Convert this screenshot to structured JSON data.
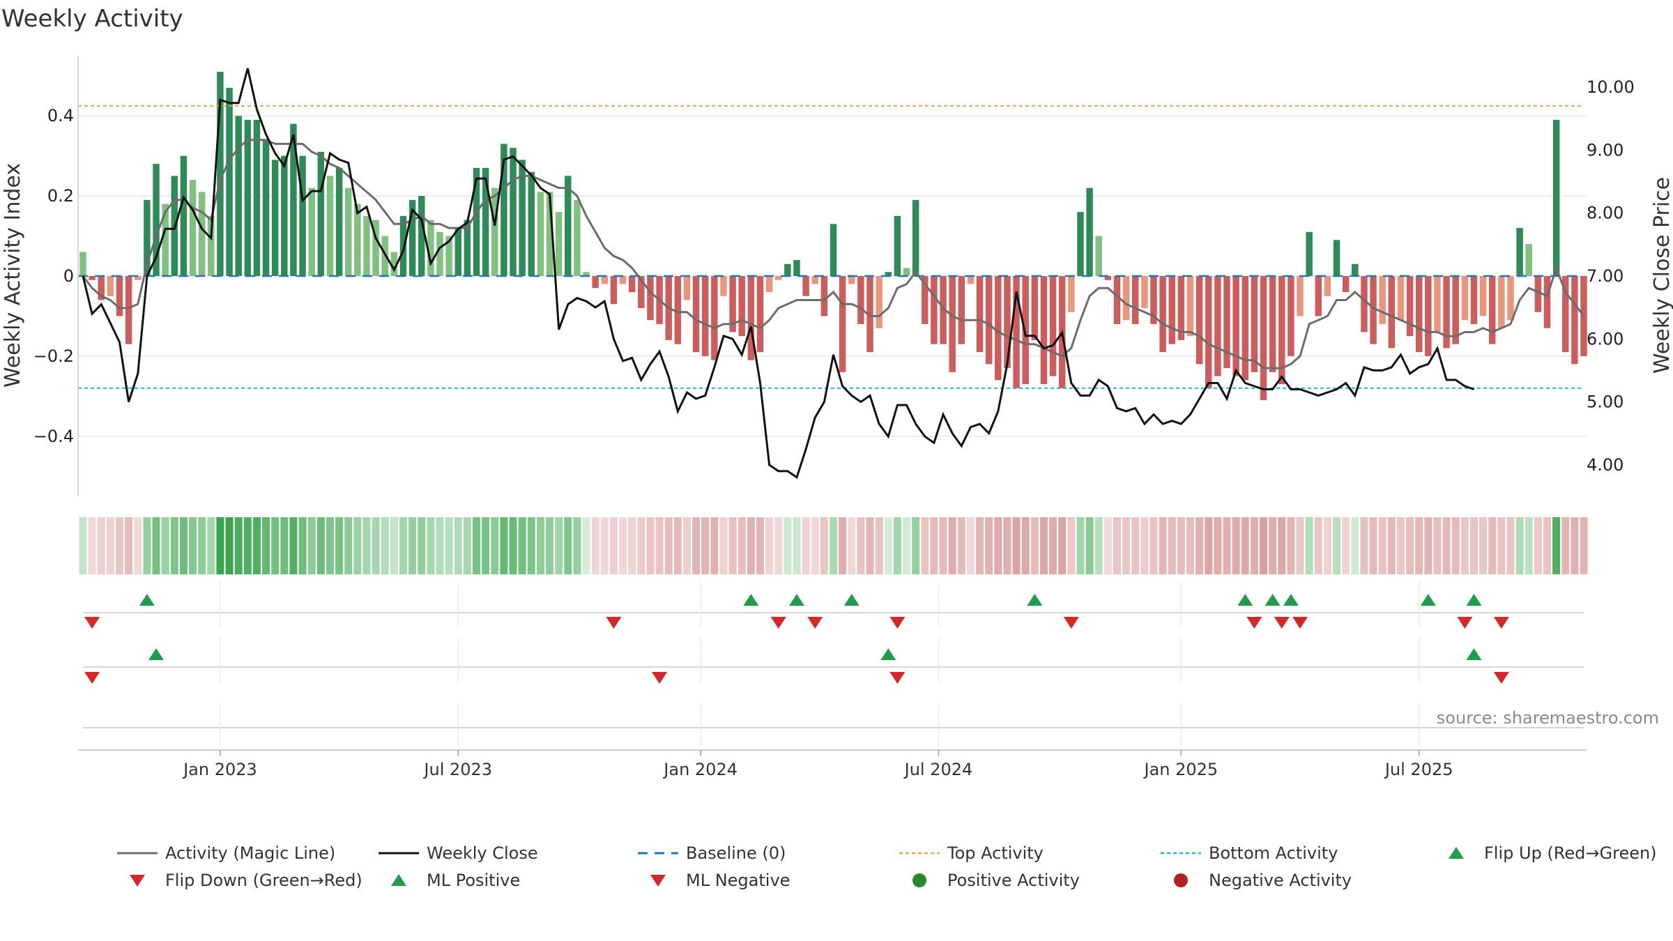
{
  "chart_data": {
    "type": "bar",
    "title": "Weekly Activity",
    "ylabel_left": "Weekly Activity Index",
    "ylabel_right": "Weekly Close Price",
    "ylim_left": [
      -0.55,
      0.55
    ],
    "ylim_right": [
      3.5,
      10.5
    ],
    "yticks_left": [
      {
        "v": 0.4,
        "label": "0.4"
      },
      {
        "v": 0.2,
        "label": "0.2"
      },
      {
        "v": 0,
        "label": "0"
      },
      {
        "v": -0.2,
        "label": "−0.2"
      },
      {
        "v": -0.4,
        "label": "−0.4"
      }
    ],
    "yticks_right": [
      {
        "v": 10,
        "label": "10.00"
      },
      {
        "v": 9,
        "label": "9.00"
      },
      {
        "v": 8,
        "label": "8.00"
      },
      {
        "v": 7,
        "label": "7.00"
      },
      {
        "v": 6,
        "label": "6.00"
      },
      {
        "v": 5,
        "label": "5.00"
      },
      {
        "v": 4,
        "label": "4.00"
      }
    ],
    "x_dates": [
      "Jan 2023",
      "Jul 2023",
      "Jan 2024",
      "Jul 2024",
      "Jan 2025",
      "Jul 2025"
    ],
    "x_date_weeks": [
      15,
      41,
      67.5,
      93.5,
      120,
      146
    ],
    "top_activity": 0.425,
    "bottom_activity": -0.28,
    "baseline": 0,
    "activity": [
      0.06,
      -0.01,
      -0.06,
      -0.05,
      -0.1,
      -0.17,
      -0.01,
      0.19,
      0.28,
      0.18,
      0.25,
      0.3,
      0.24,
      0.21,
      0.15,
      0.51,
      0.47,
      0.4,
      0.39,
      0.39,
      0.34,
      0.29,
      0.3,
      0.38,
      0.3,
      0.22,
      0.31,
      0.25,
      0.27,
      0.22,
      0.18,
      0.15,
      0.14,
      0.1,
      0.06,
      0.15,
      0.19,
      0.2,
      0.14,
      0.11,
      0.1,
      0.12,
      0.14,
      0.27,
      0.27,
      0.22,
      0.33,
      0.32,
      0.29,
      0.26,
      0.21,
      0.21,
      0.16,
      0.25,
      0.19,
      0.01,
      -0.03,
      -0.02,
      -0.07,
      -0.02,
      -0.04,
      -0.08,
      -0.11,
      -0.12,
      -0.16,
      -0.17,
      -0.06,
      -0.19,
      -0.2,
      -0.21,
      -0.05,
      -0.14,
      -0.15,
      -0.21,
      -0.19,
      -0.04,
      -0.01,
      0.03,
      0.04,
      -0.05,
      -0.02,
      -0.1,
      0.13,
      -0.24,
      -0.02,
      -0.12,
      -0.19,
      -0.13,
      0.01,
      0.15,
      0.02,
      0.19,
      -0.12,
      -0.17,
      -0.17,
      -0.24,
      -0.17,
      -0.02,
      -0.19,
      -0.22,
      -0.26,
      -0.23,
      -0.28,
      -0.27,
      -0.16,
      -0.27,
      -0.25,
      -0.28,
      -0.09,
      0.16,
      0.22,
      0.1,
      -0.01,
      -0.12,
      -0.11,
      -0.12,
      -0.08,
      -0.12,
      -0.19,
      -0.17,
      -0.16,
      -0.15,
      -0.22,
      -0.28,
      -0.25,
      -0.23,
      -0.25,
      -0.26,
      -0.24,
      -0.31,
      -0.24,
      -0.27,
      -0.2,
      -0.1,
      0.11,
      -0.1,
      -0.05,
      0.09,
      -0.04,
      0.03,
      -0.14,
      -0.17,
      -0.12,
      -0.18,
      -0.11,
      -0.15,
      -0.19,
      -0.2,
      -0.14,
      -0.18,
      -0.17,
      -0.11,
      -0.12,
      -0.1,
      -0.17,
      -0.13,
      -0.11,
      0.12,
      0.08,
      -0.09,
      -0.13,
      0.39,
      -0.19,
      -0.22,
      -0.2
    ],
    "magic_line": [
      0.0,
      -0.03,
      -0.05,
      -0.06,
      -0.08,
      -0.08,
      -0.07,
      0.03,
      0.1,
      0.16,
      0.19,
      0.19,
      0.17,
      0.16,
      0.14,
      0.24,
      0.29,
      0.32,
      0.34,
      0.34,
      0.34,
      0.33,
      0.33,
      0.33,
      0.33,
      0.31,
      0.3,
      0.28,
      0.27,
      0.25,
      0.23,
      0.21,
      0.19,
      0.16,
      0.13,
      0.13,
      0.14,
      0.15,
      0.13,
      0.13,
      0.12,
      0.12,
      0.12,
      0.16,
      0.19,
      0.2,
      0.22,
      0.24,
      0.25,
      0.25,
      0.24,
      0.23,
      0.22,
      0.22,
      0.2,
      0.15,
      0.11,
      0.07,
      0.05,
      0.04,
      0.02,
      -0.01,
      -0.04,
      -0.06,
      -0.08,
      -0.09,
      -0.09,
      -0.11,
      -0.12,
      -0.13,
      -0.12,
      -0.12,
      -0.11,
      -0.12,
      -0.13,
      -0.11,
      -0.08,
      -0.07,
      -0.06,
      -0.06,
      -0.06,
      -0.06,
      -0.04,
      -0.07,
      -0.07,
      -0.08,
      -0.1,
      -0.1,
      -0.08,
      -0.03,
      -0.02,
      0.01,
      -0.02,
      -0.05,
      -0.08,
      -0.1,
      -0.11,
      -0.11,
      -0.11,
      -0.12,
      -0.14,
      -0.15,
      -0.16,
      -0.17,
      -0.17,
      -0.18,
      -0.19,
      -0.2,
      -0.18,
      -0.11,
      -0.05,
      -0.03,
      -0.03,
      -0.05,
      -0.07,
      -0.08,
      -0.09,
      -0.1,
      -0.12,
      -0.13,
      -0.14,
      -0.14,
      -0.15,
      -0.17,
      -0.18,
      -0.19,
      -0.2,
      -0.21,
      -0.21,
      -0.23,
      -0.23,
      -0.23,
      -0.22,
      -0.2,
      -0.12,
      -0.11,
      -0.1,
      -0.06,
      -0.06,
      -0.04,
      -0.06,
      -0.08,
      -0.09,
      -0.1,
      -0.11,
      -0.12,
      -0.13,
      -0.14,
      -0.14,
      -0.15,
      -0.15,
      -0.14,
      -0.14,
      -0.13,
      -0.14,
      -0.13,
      -0.12,
      -0.06,
      -0.03,
      -0.04,
      -0.05,
      0.02,
      -0.04,
      -0.07,
      -0.1
    ],
    "weekly_close": [
      7.0,
      6.4,
      6.55,
      6.25,
      5.95,
      5.0,
      5.45,
      7.0,
      7.3,
      7.75,
      7.75,
      8.25,
      8.05,
      7.75,
      7.6,
      9.8,
      9.75,
      9.75,
      10.3,
      9.65,
      9.25,
      8.95,
      8.75,
      9.25,
      8.2,
      8.35,
      8.35,
      8.95,
      8.85,
      8.8,
      8.0,
      8.1,
      7.6,
      7.35,
      7.1,
      7.4,
      8.05,
      7.9,
      7.2,
      7.45,
      7.55,
      7.75,
      7.85,
      8.55,
      8.55,
      7.8,
      8.85,
      8.9,
      8.75,
      8.6,
      8.4,
      8.3,
      6.15,
      6.55,
      6.65,
      6.6,
      6.5,
      6.6,
      6.0,
      5.65,
      5.7,
      5.35,
      5.6,
      5.8,
      5.4,
      4.85,
      5.15,
      5.05,
      5.1,
      5.55,
      6.05,
      6.0,
      5.75,
      6.2,
      5.3,
      4.0,
      3.9,
      3.9,
      3.8,
      4.25,
      4.75,
      5.0,
      5.75,
      5.25,
      5.1,
      5.0,
      5.1,
      4.65,
      4.45,
      4.95,
      4.95,
      4.65,
      4.45,
      4.35,
      4.8,
      4.5,
      4.3,
      4.6,
      4.65,
      4.5,
      4.85,
      5.6,
      6.75,
      6.05,
      6.05,
      5.85,
      5.9,
      6.1,
      5.3,
      5.1,
      5.1,
      5.35,
      5.25,
      4.9,
      4.85,
      4.9,
      4.65,
      4.8,
      4.65,
      4.7,
      4.65,
      4.8,
      5.05,
      5.3,
      5.3,
      5.05,
      5.5,
      5.3,
      5.25,
      5.2,
      5.2,
      5.4,
      5.2,
      5.2,
      5.15,
      5.1,
      5.15,
      5.2,
      5.3,
      5.1,
      5.55,
      5.5,
      5.5,
      5.55,
      5.75,
      5.45,
      5.55,
      5.6,
      5.85,
      5.35,
      5.35,
      5.25,
      5.2
    ],
    "flip_up": [
      7,
      73,
      78,
      84,
      104,
      127,
      130,
      132,
      147,
      152
    ],
    "flip_down": [
      1,
      58,
      76,
      80,
      89,
      108,
      128,
      131,
      133,
      151,
      155
    ],
    "ml_positive": [
      8,
      88,
      152
    ],
    "ml_negative": [
      1,
      63,
      89,
      155
    ],
    "legend": [
      {
        "label": "Activity (Magic Line)",
        "kind": "line",
        "color": "#6c6c6c"
      },
      {
        "label": "Weekly Close",
        "kind": "line",
        "color": "#111111"
      },
      {
        "label": "Baseline (0)",
        "kind": "dash",
        "color": "#1f77b4"
      },
      {
        "label": "Top Activity",
        "kind": "dot",
        "color": "#f0a050"
      },
      {
        "label": "Bottom Activity",
        "kind": "dot",
        "color": "#17becf"
      },
      {
        "label": "Flip Up (Red→Green)",
        "kind": "tri-up",
        "color": "#1e9e4a"
      },
      {
        "label": "Flip Down (Green→Red)",
        "kind": "tri-down",
        "color": "#d62728"
      },
      {
        "label": "ML Positive",
        "kind": "tri-up",
        "color": "#1e9e4a"
      },
      {
        "label": "ML Negative",
        "kind": "tri-down",
        "color": "#d62728"
      },
      {
        "label": "Positive Activity",
        "kind": "circle",
        "color": "#2a8a2a"
      },
      {
        "label": "Negative Activity",
        "kind": "circle",
        "color": "#b22222"
      }
    ],
    "colors": {
      "pos_dark": "#2e8b57",
      "pos_light": "#80c080",
      "neg_dark": "#cd5c5c",
      "neg_light": "#e9967a",
      "grid": "#e6e6e6",
      "axis": "#cccccc"
    }
  },
  "source": "source: sharemaestro.com"
}
